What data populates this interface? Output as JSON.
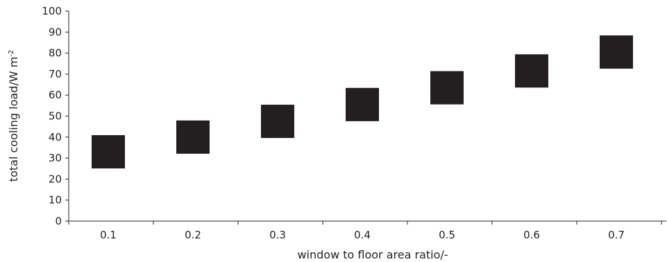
{
  "chart_data": {
    "type": "scatter",
    "x": [
      0.1,
      0.2,
      0.3,
      0.4,
      0.5,
      0.6,
      0.7
    ],
    "y": [
      33,
      40,
      47.5,
      55.5,
      63.5,
      71.5,
      80.5
    ],
    "xticks": [
      "0.1",
      "0.2",
      "0.3",
      "0.4",
      "0.5",
      "0.6",
      "0.7"
    ],
    "yticks": [
      "0",
      "10",
      "20",
      "30",
      "40",
      "50",
      "60",
      "70",
      "80",
      "90",
      "100"
    ],
    "ylim": [
      0,
      100
    ],
    "xlabel": "window to floor area ratio/-",
    "ylabel_main": "total cooling load/W m",
    "ylabel_sup": "-2",
    "marker": "square",
    "marker_color": "#231f20",
    "grid": false
  }
}
